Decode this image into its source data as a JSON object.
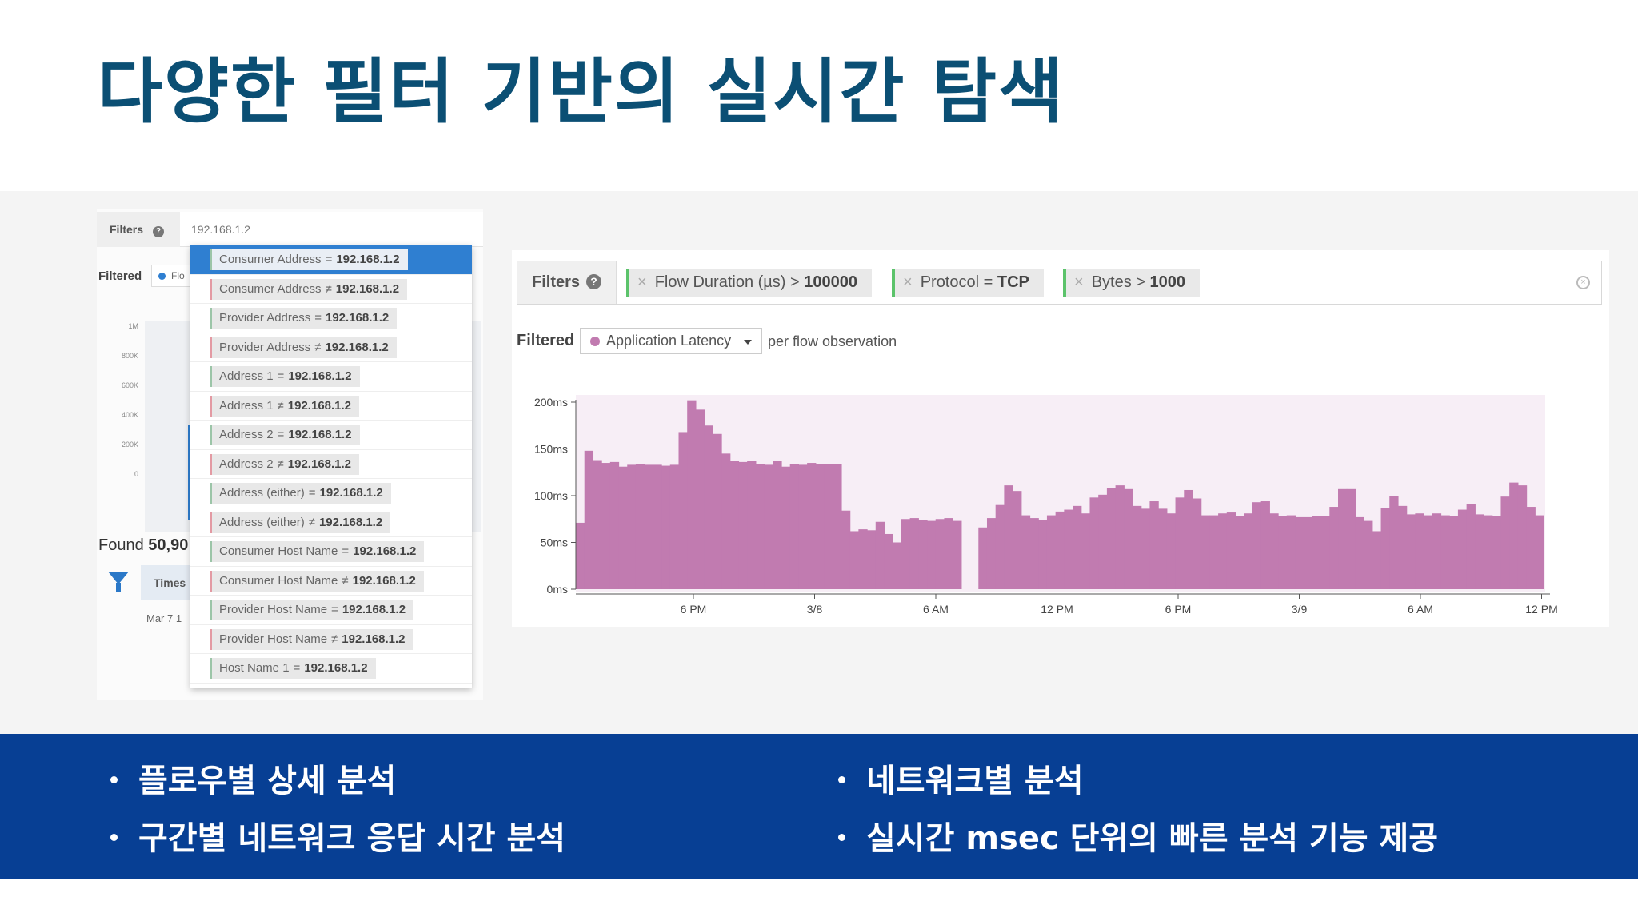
{
  "title": "다양한 필터 기반의 실시간 탐색",
  "left_panel": {
    "filters_label": "Filters",
    "search_value": "192.168.1.2",
    "filtered_label": "Filtered",
    "filtered_pill": "Flo",
    "y_ticks": [
      "1M",
      "800K",
      "600K",
      "400K",
      "200K",
      "0"
    ],
    "found_prefix": "Found ",
    "found_count": "50,90",
    "table_header": "Times",
    "row_text": "Mar 7 1",
    "suggestions": [
      {
        "field": "Consumer Address",
        "op": "=",
        "value": "192.168.1.2",
        "selected": true
      },
      {
        "field": "Consumer Address",
        "op": "≠",
        "value": "192.168.1.2"
      },
      {
        "field": "Provider Address",
        "op": "=",
        "value": "192.168.1.2"
      },
      {
        "field": "Provider Address",
        "op": "≠",
        "value": "192.168.1.2"
      },
      {
        "field": "Address 1",
        "op": "=",
        "value": "192.168.1.2"
      },
      {
        "field": "Address 1",
        "op": "≠",
        "value": "192.168.1.2"
      },
      {
        "field": "Address 2",
        "op": "=",
        "value": "192.168.1.2"
      },
      {
        "field": "Address 2",
        "op": "≠",
        "value": "192.168.1.2"
      },
      {
        "field": "Address (either)",
        "op": "=",
        "value": "192.168.1.2"
      },
      {
        "field": "Address (either)",
        "op": "≠",
        "value": "192.168.1.2"
      },
      {
        "field": "Consumer Host Name",
        "op": "=",
        "value": "192.168.1.2"
      },
      {
        "field": "Consumer Host Name",
        "op": "≠",
        "value": "192.168.1.2"
      },
      {
        "field": "Provider Host Name",
        "op": "=",
        "value": "192.168.1.2"
      },
      {
        "field": "Provider Host Name",
        "op": "≠",
        "value": "192.168.1.2"
      },
      {
        "field": "Host Name 1",
        "op": "=",
        "value": "192.168.1.2"
      }
    ]
  },
  "right_panel": {
    "filters_label": "Filters",
    "help_icon": "question-circle-icon",
    "chips": [
      {
        "field": "Flow Duration (µs)",
        "op": ">",
        "value": "100000"
      },
      {
        "field": "Protocol",
        "op": "=",
        "value": "TCP"
      },
      {
        "field": "Bytes",
        "op": ">",
        "value": "1000"
      }
    ],
    "filtered_label": "Filtered",
    "metric": "Application Latency",
    "per_text": "per flow observation"
  },
  "chart_data": {
    "type": "bar",
    "series_color": "#c17bb0",
    "background_color": "#f7eef6",
    "y_ticks": [
      "0ms",
      "50ms",
      "100ms",
      "150ms",
      "200ms"
    ],
    "ylim": [
      0,
      200
    ],
    "y_unit": "ms",
    "x_ticks": [
      "6 PM",
      "3/8",
      "6 AM",
      "12 PM",
      "6 PM",
      "3/9",
      "6 AM",
      "12 PM"
    ],
    "values": [
      71,
      148,
      138,
      135,
      136,
      131,
      133,
      134,
      133,
      133,
      132,
      133,
      168,
      202,
      192,
      175,
      166,
      145,
      137,
      136,
      137,
      134,
      133,
      137,
      131,
      134,
      133,
      135,
      134,
      134,
      134,
      84,
      62,
      64,
      63,
      72,
      59,
      50,
      75,
      76,
      74,
      73,
      75,
      76,
      73,
      0,
      0,
      66,
      76,
      90,
      111,
      105,
      79,
      76,
      74,
      79,
      83,
      85,
      89,
      81,
      98,
      101,
      108,
      111,
      107,
      89,
      86,
      94,
      86,
      81,
      98,
      106,
      97,
      79,
      79,
      81,
      82,
      78,
      81,
      93,
      94,
      81,
      78,
      79,
      77,
      77,
      78,
      78,
      88,
      107,
      107,
      77,
      73,
      62,
      87,
      100,
      89,
      80,
      81,
      79,
      81,
      79,
      78,
      85,
      91,
      80,
      79,
      78,
      99,
      114,
      111,
      88,
      79
    ]
  },
  "bullets": {
    "left": [
      "플로우별 상세 분석",
      "구간별 네트워크 응답 시간 분석"
    ],
    "right": [
      "네트워크별 분석",
      "실시간 msec 단위의 빠른 분석 기능 제공"
    ]
  },
  "colors": {
    "title": "#0b4f74",
    "bottom_band": "#073f94",
    "accent_blue": "#2f7fd1",
    "chip_green": "#5cc36b"
  }
}
